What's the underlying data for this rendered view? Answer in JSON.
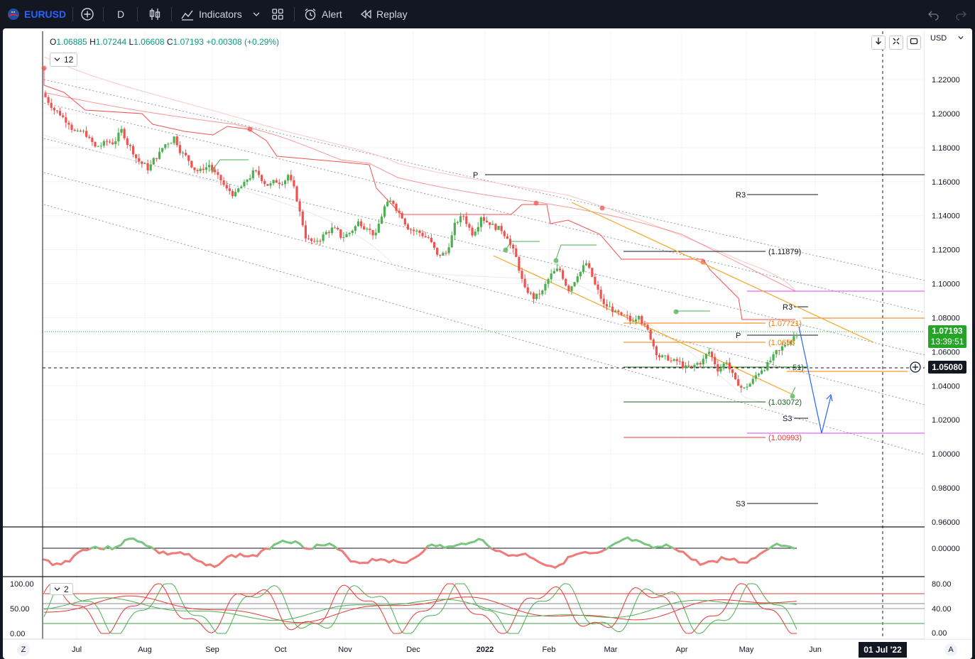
{
  "toolbar": {
    "symbol": "EURUSD",
    "interval": "D",
    "indicators_label": "Indicators",
    "alert_label": "Alert",
    "replay_label": "Replay"
  },
  "legend": {
    "o_label": "O",
    "o": "1.06885",
    "h_label": "H",
    "h": "1.07244",
    "l_label": "L",
    "l": "1.06608",
    "c_label": "C",
    "c": "1.07193",
    "change": "+0.00308 (+0.29%)",
    "ind_count_main": "12",
    "ind_count_sub": "2"
  },
  "scale": {
    "currency": "USD",
    "price_ticks": [
      "1.22000",
      "1.20000",
      "1.18000",
      "1.16000",
      "1.14000",
      "1.12000",
      "1.10000",
      "1.08000",
      "1.06000",
      "1.04000",
      "1.02000",
      "1.00000",
      "0.98000",
      "0.96000"
    ],
    "osc1_ticks": [
      "0.00000"
    ],
    "osc2_left_ticks": [
      "100.00",
      "50.00",
      "0.00"
    ],
    "osc2_right_ticks": [
      "80.00",
      "40.00",
      "0.00"
    ],
    "last_price": "1.07193",
    "countdown": "13:39:51",
    "crosshair_price": "1.05080",
    "time_labels": [
      "Jul",
      "Aug",
      "Sep",
      "Oct",
      "Nov",
      "Dec",
      "2022",
      "Feb",
      "Mar",
      "Apr",
      "May",
      "Jun"
    ],
    "crosshair_date": "01 Jul '22",
    "bottom_left": "Z",
    "bottom_right": "A"
  },
  "annotations": {
    "p_top": "P",
    "r3_top": "R3",
    "lvl_111879": "(1.11879)",
    "r3_mid": "R3",
    "lvl_107721": "(1.07721)",
    "p_mid": "P",
    "lvl_10655": "(1.0655",
    "lvl_51": "51)",
    "lvl_103072": "(1.03072)",
    "s3_mid": "S3",
    "lvl_100993": "(1.00993)",
    "s3_low": "S3"
  },
  "colors": {
    "up": "#4caf50",
    "down": "#ef5350",
    "accent": "#2962ff",
    "last_price_bg": "#26a428",
    "fib_orange": "#f57c00",
    "magenta": "#e040fb"
  },
  "chart_data": {
    "type": "candlestick",
    "symbol": "EURUSD",
    "interval": "D",
    "y_range": [
      0.955,
      1.235
    ],
    "support_resistance": {
      "P": 1.1636,
      "R3": 1.1528,
      "level_high": 1.11879,
      "R3_mid": 1.0863,
      "fib_1": 1.07721,
      "P_mid": 1.0693,
      "fib_2": 1.0655,
      "level_51": 1.0508,
      "level_low": 1.03072,
      "S3_mid": 1.021,
      "level_min": 1.00993,
      "S3_low": 0.9708
    },
    "approx_closes": [
      1.205,
      1.2,
      1.195,
      1.188,
      1.188,
      1.18,
      1.182,
      1.183,
      1.19,
      1.18,
      1.172,
      1.168,
      1.175,
      1.182,
      1.186,
      1.176,
      1.17,
      1.166,
      1.17,
      1.162,
      1.155,
      1.152,
      1.158,
      1.165,
      1.162,
      1.158,
      1.16,
      1.164,
      1.15,
      1.128,
      1.123,
      1.128,
      1.132,
      1.128,
      1.13,
      1.136,
      1.134,
      1.128,
      1.145,
      1.148,
      1.14,
      1.132,
      1.13,
      1.127,
      1.116,
      1.118,
      1.134,
      1.14,
      1.13,
      1.14,
      1.136,
      1.132,
      1.128,
      1.115,
      1.096,
      1.092,
      1.095,
      1.105,
      1.108,
      1.097,
      1.106,
      1.112,
      1.099,
      1.087,
      1.085,
      1.08,
      1.078,
      1.083,
      1.072,
      1.06,
      1.056,
      1.054,
      1.052,
      1.05,
      1.054,
      1.06,
      1.05,
      1.055,
      1.042,
      1.038,
      1.043,
      1.05,
      1.055,
      1.06,
      1.066,
      1.0719
    ]
  }
}
